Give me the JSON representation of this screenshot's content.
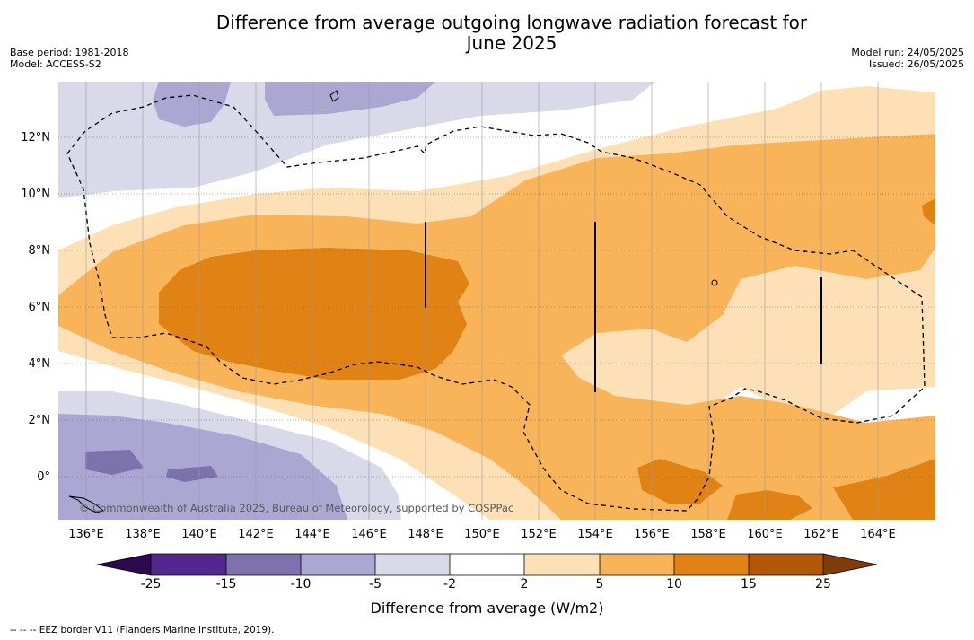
{
  "header": {
    "title_line1": "Difference from average outgoing longwave radiation forecast for",
    "title_line2": "June 2025",
    "base_period": "Base period: 1981-2018",
    "model": "Model: ACCESS-S2",
    "model_run": "Model run: 24/05/2025",
    "issued": "Issued: 26/05/2025"
  },
  "map": {
    "lat_labels": [
      "12°N",
      "10°N",
      "8°N",
      "6°N",
      "4°N",
      "2°N",
      "0°"
    ],
    "lon_labels": [
      "136°E",
      "138°E",
      "140°E",
      "142°E",
      "144°E",
      "146°E",
      "148°E",
      "150°E",
      "152°E",
      "154°E",
      "156°E",
      "158°E",
      "160°E",
      "162°E",
      "164°E"
    ],
    "copyright": "© Commonwealth of Australia 2025, Bureau of Meteorology, supported by COSPPac"
  },
  "colorbar": {
    "ticks": [
      "-25",
      "-15",
      "-10",
      "-5",
      "-2",
      "2",
      "5",
      "10",
      "15",
      "25"
    ],
    "colors": {
      "lt_-25": "#2d0a4e",
      "-25_-15": "#54278f",
      "-15_-10": "#7e72ad",
      "-10_-5": "#aca6d2",
      "-5_-2": "#d9d9ea",
      "-2_2": "#ffffff",
      "2_5": "#fde0b6",
      "5_10": "#f9b45a",
      "10_15": "#e08214",
      "15_25": "#b35806",
      "gt_25": "#7f3b08"
    },
    "label": "Difference from average (W/m2)"
  },
  "footnote": "--  --  -- EEZ border V11 (Flanders Marine Institute, 2019)."
}
